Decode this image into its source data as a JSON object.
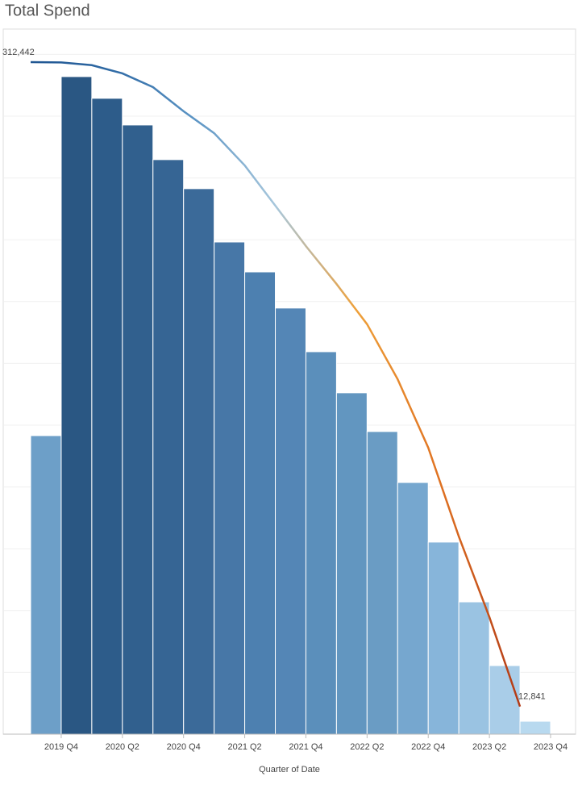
{
  "chart_data": {
    "type": "bar_line",
    "title": "Total Spend",
    "x_label": "Quarter of Date",
    "categories": [
      null,
      "2019 Q4",
      null,
      "2020 Q2",
      null,
      "2020 Q4",
      null,
      "2021 Q2",
      null,
      "2021 Q4",
      null,
      "2022 Q2",
      null,
      "2022 Q4",
      null,
      "2023 Q2",
      null,
      "2023 Q4"
    ],
    "series": [
      {
        "type": "bar",
        "colors": [
          "#6d9fc8",
          "#2a5783",
          "#2d5c8a",
          "#31608e",
          "#366594",
          "#3b6a99",
          "#4777a7",
          "#4d80b0",
          "#5486b6",
          "#5b8fbb",
          "#6296c0",
          "#6a9cc4",
          "#76a7cf",
          "#87b5da",
          "#9ac3e2",
          "#a9cde8",
          "#b8d9ef"
        ],
        "values": [
          138800,
          305700,
          295600,
          283200,
          267100,
          253600,
          228800,
          214900,
          198100,
          177800,
          158700,
          140700,
          117000,
          89300,
          61500,
          31900,
          6000,
          null
        ]
      },
      {
        "type": "line",
        "gradient": [
          "#1f5591",
          "#2f6aa5",
          "#5b94c4",
          "#a7c7dc",
          "#eea03a",
          "#e07322",
          "#b33a16"
        ],
        "values": [
          312442,
          312300,
          311000,
          307200,
          300800,
          289600,
          279400,
          264400,
          245700,
          226900,
          209300,
          190600,
          165000,
          133200,
          91900,
          54400,
          12841,
          null
        ],
        "value_labels": [
          "312,442",
          null,
          null,
          null,
          null,
          null,
          null,
          null,
          null,
          null,
          null,
          null,
          null,
          null,
          null,
          null,
          "12,841",
          null
        ]
      }
    ],
    "ylim": [
      0,
      327800
    ],
    "yticks": [
      0,
      28730,
      57460,
      86190,
      114920,
      143650,
      172380,
      201110,
      229840,
      258570,
      287300,
      316030
    ],
    "grid": true
  }
}
